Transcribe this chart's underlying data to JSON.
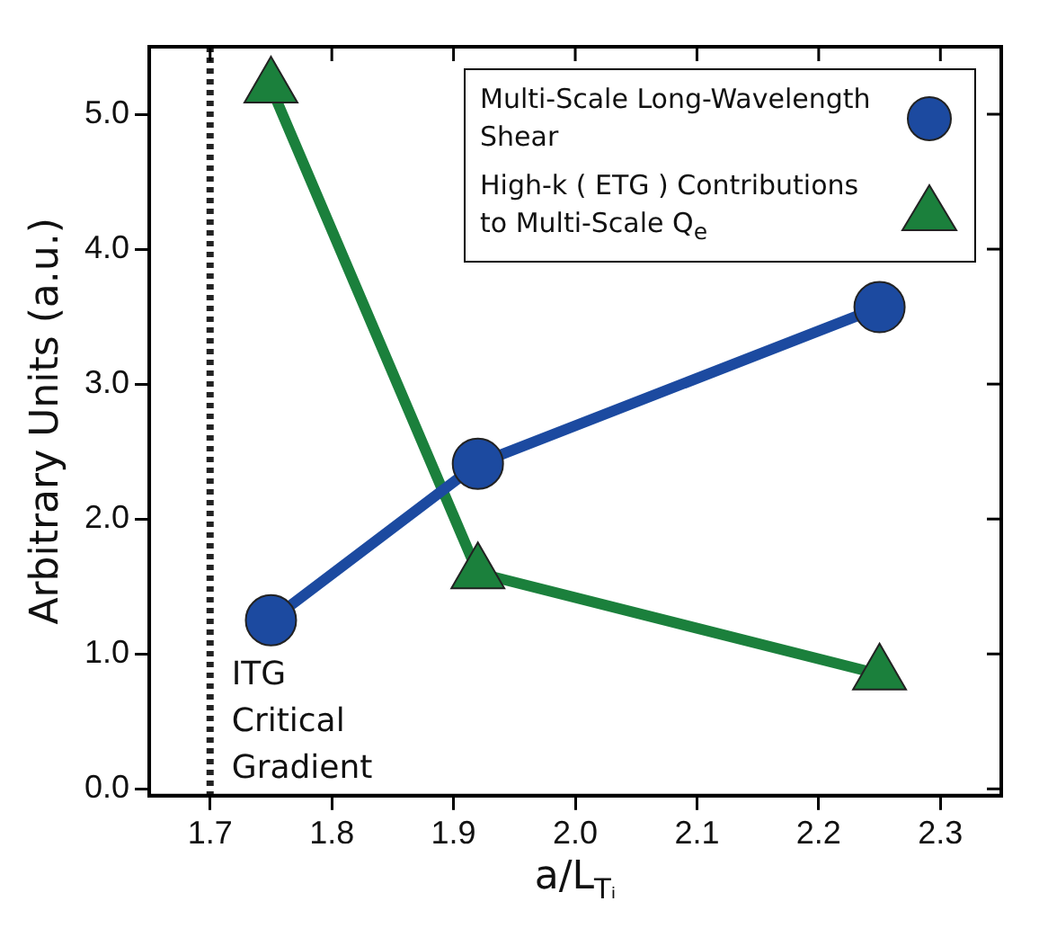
{
  "chart_data": {
    "type": "line",
    "xlabel": "a/L$_{Tᵢ}$",
    "ylabel": "Arbitrary Units (a.u.)",
    "x": [
      1.75,
      1.92,
      2.25
    ],
    "series": [
      {
        "name": "Multi-Scale Long-Wavelength Shear",
        "color": "#1c4aa0",
        "marker": "circle",
        "values": [
          1.25,
          2.41,
          3.57
        ]
      },
      {
        "name": "High-k ( ETG ) Contributions to Multi-Scale Q$_{e}$",
        "color": "#1b803c",
        "marker": "triangle",
        "values": [
          5.2,
          1.6,
          0.85
        ]
      }
    ],
    "xlim": [
      1.65,
      2.35
    ],
    "xticks": [
      1.7,
      1.8,
      1.9,
      {
        "value": 2,
        "label": "2.0"
      },
      2.1,
      2.2,
      2.3
    ],
    "ylim": [
      -0.05,
      5.5
    ],
    "yticks": [
      {
        "value": 0,
        "label": "0.0"
      },
      {
        "value": 1,
        "label": "1.0"
      },
      {
        "value": 2,
        "label": "2.0"
      },
      {
        "value": 3,
        "label": "3.0"
      },
      {
        "value": 4,
        "label": "4.0"
      },
      {
        "value": 5,
        "label": "5.0"
      }
    ],
    "ref_lines": [
      {
        "axis": "x",
        "value": 1.7,
        "label": "ITG Critical Gradient",
        "color": "#222222",
        "line_style": "dotted"
      }
    ],
    "legend": "top right",
    "grid": false,
    "line_style": "solid"
  }
}
